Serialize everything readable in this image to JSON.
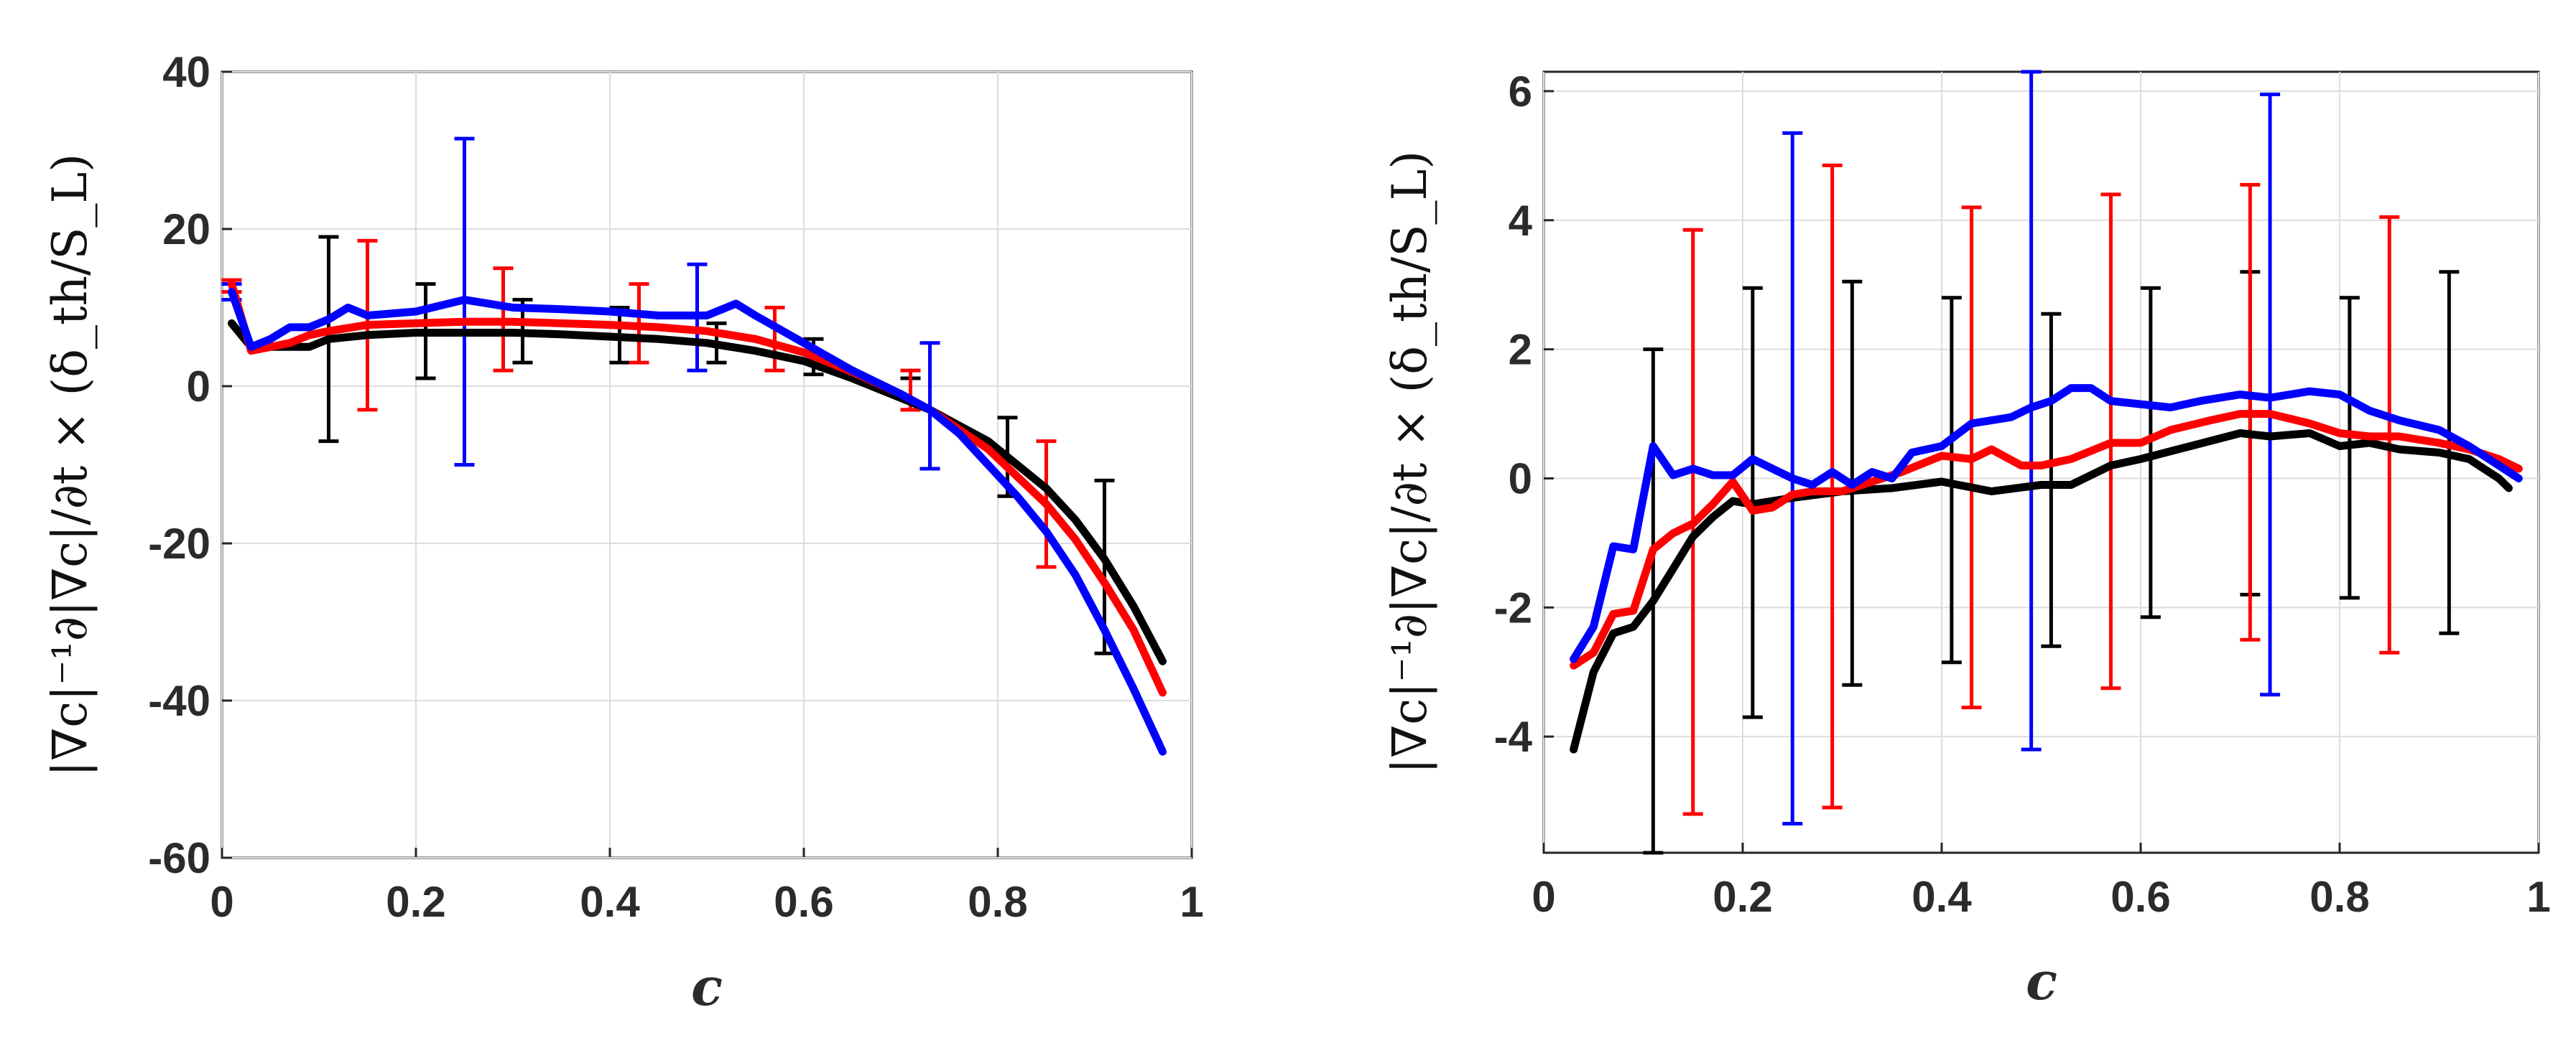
{
  "chart_data": [
    {
      "type": "line",
      "panel": "left",
      "title": "",
      "xlabel": "c",
      "ylabel": "|∇c|⁻¹∂|∇c|/∂t × (δ_th/S_L)",
      "xlim": [
        0,
        1
      ],
      "ylim": [
        -60,
        40
      ],
      "xticks": [
        0,
        0.2,
        0.4,
        0.6,
        0.8,
        1
      ],
      "xtick_labels": [
        "0",
        "0.2",
        "0.4",
        "0.6",
        "0.8",
        "1"
      ],
      "yticks": [
        -60,
        -40,
        -20,
        0,
        20,
        40
      ],
      "ytick_labels": [
        "-60",
        "-40",
        "-20",
        "0",
        "20",
        "40"
      ],
      "grid": true,
      "series": [
        {
          "name": "black",
          "color": "#000000",
          "x": [
            0.01,
            0.03,
            0.05,
            0.07,
            0.09,
            0.11,
            0.15,
            0.2,
            0.25,
            0.3,
            0.35,
            0.4,
            0.45,
            0.5,
            0.55,
            0.6,
            0.65,
            0.7,
            0.73,
            0.76,
            0.79,
            0.82,
            0.85,
            0.88,
            0.91,
            0.94,
            0.97
          ],
          "y": [
            8,
            5,
            5,
            5,
            5,
            6,
            6.5,
            6.8,
            6.8,
            6.8,
            6.6,
            6.3,
            6,
            5.5,
            4.5,
            3.2,
            1,
            -1.5,
            -3,
            -5,
            -7,
            -10,
            -13,
            -17,
            -22,
            -28,
            -35
          ],
          "errorbars": [
            {
              "x": 0.11,
              "y": 6,
              "lo": -7,
              "hi": 19
            },
            {
              "x": 0.21,
              "y": 6.8,
              "lo": 1,
              "hi": 13
            },
            {
              "x": 0.31,
              "y": 6.8,
              "lo": 3,
              "hi": 11
            },
            {
              "x": 0.41,
              "y": 6.5,
              "lo": 3,
              "hi": 10
            },
            {
              "x": 0.51,
              "y": 5.5,
              "lo": 3,
              "hi": 8
            },
            {
              "x": 0.61,
              "y": 3,
              "lo": 1.5,
              "hi": 6
            },
            {
              "x": 0.71,
              "y": -1.5,
              "lo": -3,
              "hi": 1
            },
            {
              "x": 0.81,
              "y": -9,
              "lo": -14,
              "hi": -4
            },
            {
              "x": 0.91,
              "y": -22,
              "lo": -34,
              "hi": -12
            }
          ]
        },
        {
          "name": "red",
          "color": "#ff0000",
          "x": [
            0.01,
            0.03,
            0.05,
            0.07,
            0.09,
            0.11,
            0.15,
            0.2,
            0.25,
            0.3,
            0.35,
            0.4,
            0.45,
            0.5,
            0.55,
            0.6,
            0.65,
            0.7,
            0.73,
            0.76,
            0.79,
            0.82,
            0.85,
            0.88,
            0.91,
            0.94,
            0.97
          ],
          "y": [
            13,
            4.5,
            5,
            5.5,
            6.5,
            7,
            7.8,
            8,
            8.2,
            8.2,
            8,
            7.8,
            7.5,
            7,
            6,
            4.3,
            1.8,
            -1,
            -3,
            -5.5,
            -8,
            -11.5,
            -15,
            -19.5,
            -25,
            -31,
            -39
          ],
          "errorbars": [
            {
              "x": 0.01,
              "y": 13,
              "lo": 12,
              "hi": 13.5
            },
            {
              "x": 0.15,
              "y": 7.8,
              "lo": -3,
              "hi": 18.5
            },
            {
              "x": 0.29,
              "y": 8.2,
              "lo": 2,
              "hi": 15
            },
            {
              "x": 0.43,
              "y": 7.7,
              "lo": 3,
              "hi": 13
            },
            {
              "x": 0.57,
              "y": 5.5,
              "lo": 2,
              "hi": 10
            },
            {
              "x": 0.71,
              "y": -1,
              "lo": -3,
              "hi": 2
            },
            {
              "x": 0.85,
              "y": -15,
              "lo": -23,
              "hi": -7
            }
          ]
        },
        {
          "name": "blue",
          "color": "#0000ff",
          "x": [
            0.01,
            0.03,
            0.05,
            0.07,
            0.09,
            0.11,
            0.13,
            0.15,
            0.2,
            0.25,
            0.3,
            0.35,
            0.4,
            0.45,
            0.5,
            0.53,
            0.55,
            0.6,
            0.65,
            0.7,
            0.73,
            0.76,
            0.79,
            0.82,
            0.85,
            0.88,
            0.91,
            0.94,
            0.97
          ],
          "y": [
            12,
            5,
            6,
            7.5,
            7.5,
            8.5,
            10,
            9,
            9.5,
            11,
            10,
            9.8,
            9.5,
            9,
            9,
            10.5,
            9,
            5.5,
            2,
            -1,
            -3,
            -6,
            -10,
            -14,
            -18.5,
            -24,
            -31,
            -38.5,
            -46.5
          ],
          "errorbars": [
            {
              "x": 0.01,
              "y": 12,
              "lo": 11,
              "hi": 13
            },
            {
              "x": 0.25,
              "y": 11,
              "lo": -10,
              "hi": 31.5
            },
            {
              "x": 0.49,
              "y": 9,
              "lo": 2,
              "hi": 15.5
            },
            {
              "x": 0.73,
              "y": -3,
              "lo": -10.5,
              "hi": 5.5
            }
          ]
        }
      ]
    },
    {
      "type": "line",
      "panel": "right",
      "title": "",
      "xlabel": "c",
      "ylabel": "|∇c|⁻¹∂|∇c|/∂t × (δ_th/S_L)",
      "xlim": [
        0,
        1
      ],
      "ylim": [
        -5.8,
        6.3
      ],
      "xticks": [
        0,
        0.2,
        0.4,
        0.6,
        0.8,
        1
      ],
      "xtick_labels": [
        "0",
        "0.2",
        "0.4",
        "0.6",
        "0.8",
        "1"
      ],
      "yticks": [
        -4,
        -2,
        0,
        2,
        4,
        6
      ],
      "ytick_labels": [
        "-4",
        "-2",
        "0",
        "2",
        "4",
        "6"
      ],
      "grid": true,
      "series": [
        {
          "name": "black",
          "color": "#000000",
          "x": [
            0.03,
            0.05,
            0.07,
            0.09,
            0.11,
            0.13,
            0.15,
            0.17,
            0.19,
            0.21,
            0.25,
            0.3,
            0.35,
            0.4,
            0.45,
            0.5,
            0.53,
            0.57,
            0.6,
            0.65,
            0.7,
            0.73,
            0.77,
            0.8,
            0.83,
            0.86,
            0.9,
            0.93,
            0.96,
            0.97
          ],
          "y": [
            -4.2,
            -3,
            -2.4,
            -2.3,
            -1.9,
            -1.4,
            -0.9,
            -0.6,
            -0.35,
            -0.4,
            -0.3,
            -0.2,
            -0.15,
            -0.05,
            -0.2,
            -0.1,
            -0.1,
            0.2,
            0.3,
            0.5,
            0.7,
            0.65,
            0.7,
            0.5,
            0.55,
            0.45,
            0.4,
            0.3,
            0.0,
            -0.15
          ],
          "errorbars": [
            {
              "x": 0.11,
              "y": -1.9,
              "lo": -5.8,
              "hi": 2
            },
            {
              "x": 0.21,
              "y": -0.4,
              "lo": -3.7,
              "hi": 2.95
            },
            {
              "x": 0.31,
              "y": -0.2,
              "lo": -3.2,
              "hi": 3.05
            },
            {
              "x": 0.41,
              "y": -0.05,
              "lo": -2.85,
              "hi": 2.8
            },
            {
              "x": 0.51,
              "y": -0.1,
              "lo": -2.6,
              "hi": 2.55
            },
            {
              "x": 0.61,
              "y": 0.3,
              "lo": -2.15,
              "hi": 2.95
            },
            {
              "x": 0.71,
              "y": 0.7,
              "lo": -1.8,
              "hi": 3.2
            },
            {
              "x": 0.81,
              "y": 0.5,
              "lo": -1.85,
              "hi": 2.8
            },
            {
              "x": 0.91,
              "y": 0.4,
              "lo": -2.4,
              "hi": 3.2
            }
          ]
        },
        {
          "name": "red",
          "color": "#ff0000",
          "x": [
            0.03,
            0.05,
            0.07,
            0.09,
            0.11,
            0.13,
            0.15,
            0.17,
            0.19,
            0.21,
            0.23,
            0.25,
            0.27,
            0.3,
            0.33,
            0.36,
            0.4,
            0.43,
            0.45,
            0.48,
            0.5,
            0.53,
            0.57,
            0.6,
            0.63,
            0.67,
            0.7,
            0.73,
            0.77,
            0.8,
            0.83,
            0.86,
            0.9,
            0.93,
            0.96,
            0.98
          ],
          "y": [
            -2.9,
            -2.7,
            -2.1,
            -2.05,
            -1.1,
            -0.85,
            -0.7,
            -0.4,
            -0.05,
            -0.5,
            -0.45,
            -0.25,
            -0.2,
            -0.2,
            -0.05,
            0.1,
            0.35,
            0.3,
            0.45,
            0.2,
            0.2,
            0.3,
            0.55,
            0.55,
            0.75,
            0.9,
            1.0,
            1.0,
            0.85,
            0.7,
            0.65,
            0.65,
            0.55,
            0.45,
            0.3,
            0.15
          ],
          "errorbars": [
            {
              "x": 0.15,
              "y": -0.7,
              "lo": -5.2,
              "hi": 3.85
            },
            {
              "x": 0.29,
              "y": -0.2,
              "lo": -5.1,
              "hi": 4.85
            },
            {
              "x": 0.43,
              "y": 0.3,
              "lo": -3.55,
              "hi": 4.2
            },
            {
              "x": 0.57,
              "y": 0.55,
              "lo": -3.25,
              "hi": 4.4
            },
            {
              "x": 0.71,
              "y": 1.0,
              "lo": -2.5,
              "hi": 4.55
            },
            {
              "x": 0.85,
              "y": 0.65,
              "lo": -2.7,
              "hi": 4.05
            }
          ]
        },
        {
          "name": "blue",
          "color": "#0000ff",
          "x": [
            0.03,
            0.05,
            0.07,
            0.09,
            0.11,
            0.13,
            0.15,
            0.17,
            0.19,
            0.21,
            0.23,
            0.25,
            0.27,
            0.29,
            0.31,
            0.33,
            0.35,
            0.37,
            0.4,
            0.43,
            0.45,
            0.47,
            0.49,
            0.51,
            0.53,
            0.55,
            0.57,
            0.6,
            0.63,
            0.66,
            0.7,
            0.73,
            0.77,
            0.8,
            0.83,
            0.86,
            0.9,
            0.93,
            0.96,
            0.98
          ],
          "y": [
            -2.8,
            -2.3,
            -1.05,
            -1.1,
            0.5,
            0.05,
            0.15,
            0.05,
            0.05,
            0.3,
            0.15,
            0.0,
            -0.1,
            0.1,
            -0.1,
            0.1,
            0.0,
            0.4,
            0.5,
            0.85,
            0.9,
            0.95,
            1.1,
            1.2,
            1.4,
            1.4,
            1.2,
            1.15,
            1.1,
            1.2,
            1.3,
            1.25,
            1.35,
            1.3,
            1.05,
            0.9,
            0.75,
            0.5,
            0.2,
            0.0
          ],
          "errorbars": [
            {
              "x": 0.25,
              "y": 0.0,
              "lo": -5.35,
              "hi": 5.35
            },
            {
              "x": 0.49,
              "y": 1.1,
              "lo": -4.2,
              "hi": 6.3
            },
            {
              "x": 0.73,
              "y": 1.25,
              "lo": -3.35,
              "hi": 5.95
            }
          ]
        }
      ]
    }
  ]
}
